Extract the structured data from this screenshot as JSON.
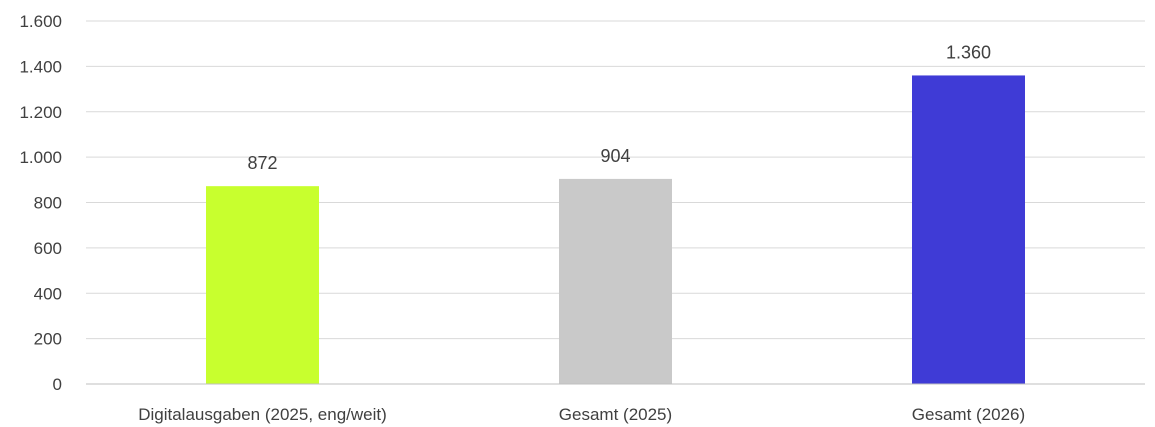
{
  "chart_data": {
    "type": "bar",
    "categories": [
      "Digitalausgaben (2025, eng/weit)",
      "Gesamt (2025)",
      "Gesamt (2026)"
    ],
    "values": [
      872,
      904,
      1360
    ],
    "value_labels": [
      "872",
      "904",
      "1.360"
    ],
    "colors": [
      "#c8ff2e",
      "#c9c9c9",
      "#3f3bd6"
    ],
    "title": "",
    "xlabel": "",
    "ylabel": "",
    "ylim": [
      0,
      1600
    ],
    "yticks": [
      0,
      200,
      400,
      600,
      800,
      1000,
      1200,
      1400,
      1600
    ],
    "ytick_labels": [
      "0",
      "200",
      "400",
      "600",
      "800",
      "1.000",
      "1.200",
      "1.400",
      "1.600"
    ],
    "grid": true,
    "legend": "none"
  }
}
